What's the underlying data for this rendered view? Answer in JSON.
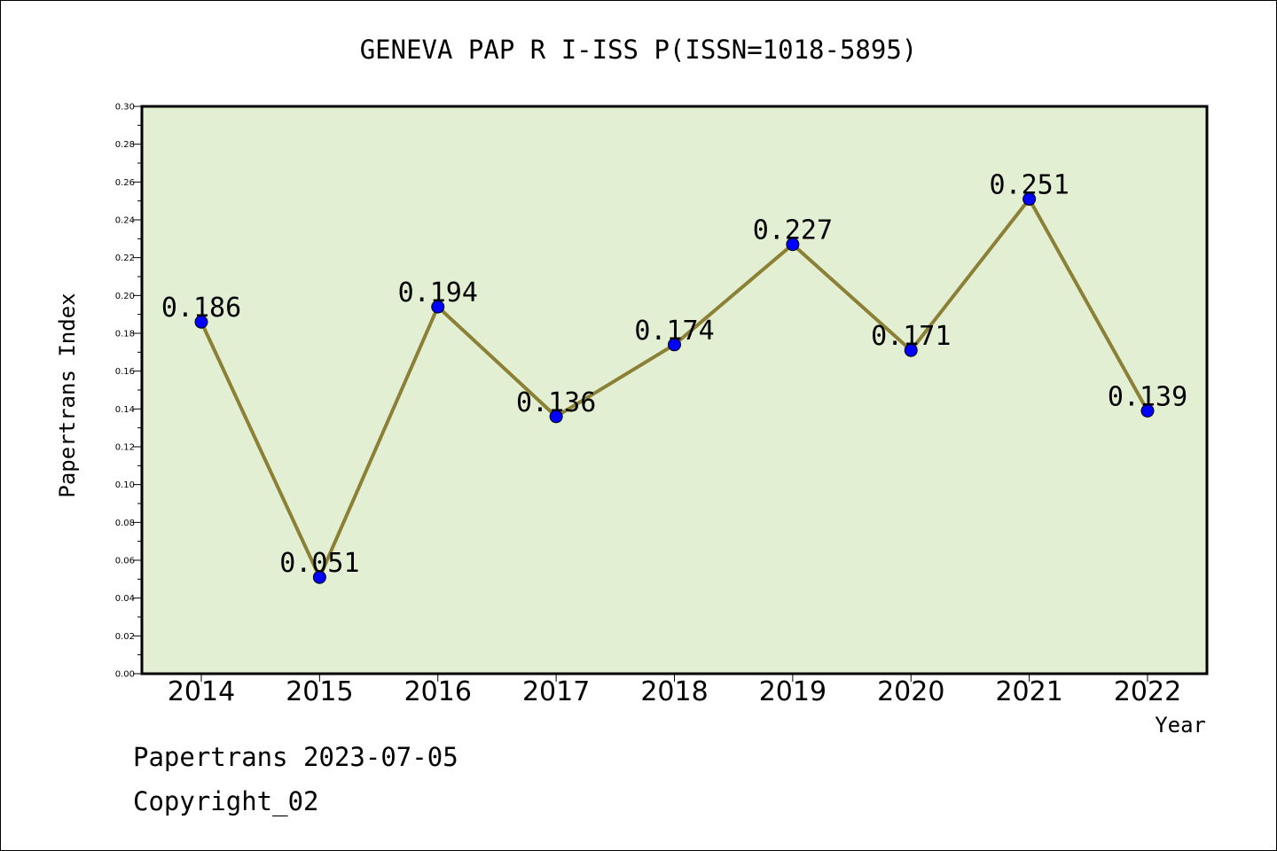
{
  "chart_data": {
    "type": "line",
    "title": "GENEVA PAP R I-ISS P(ISSN=1018-5895)",
    "xlabel": "Year",
    "ylabel": "Papertrans Index",
    "categories": [
      "2014",
      "2015",
      "2016",
      "2017",
      "2018",
      "2019",
      "2020",
      "2021",
      "2022"
    ],
    "series": [
      {
        "values": [
          0.186,
          0.051,
          0.194,
          0.136,
          0.174,
          0.227,
          0.171,
          0.251,
          0.139
        ],
        "labels": [
          "0.186",
          "0.051",
          "0.194",
          "0.136",
          "0.174",
          "0.227",
          "0.171",
          "0.251",
          "0.139"
        ]
      }
    ],
    "ylim": [
      0.0,
      0.3
    ],
    "yticks": [
      "0.00",
      "0.02",
      "0.04",
      "0.06",
      "0.08",
      "0.10",
      "0.12",
      "0.14",
      "0.16",
      "0.18",
      "0.20",
      "0.22",
      "0.24",
      "0.26",
      "0.28",
      "0.30"
    ],
    "grid": false,
    "legend": false,
    "colors": {
      "plot_background": "#e2efd3",
      "line": "#8b8035",
      "marker": "#0000ff",
      "axes": "#000000"
    }
  },
  "footer": {
    "line1": "Papertrans 2023-07-05",
    "line2": "Copyright_02"
  }
}
